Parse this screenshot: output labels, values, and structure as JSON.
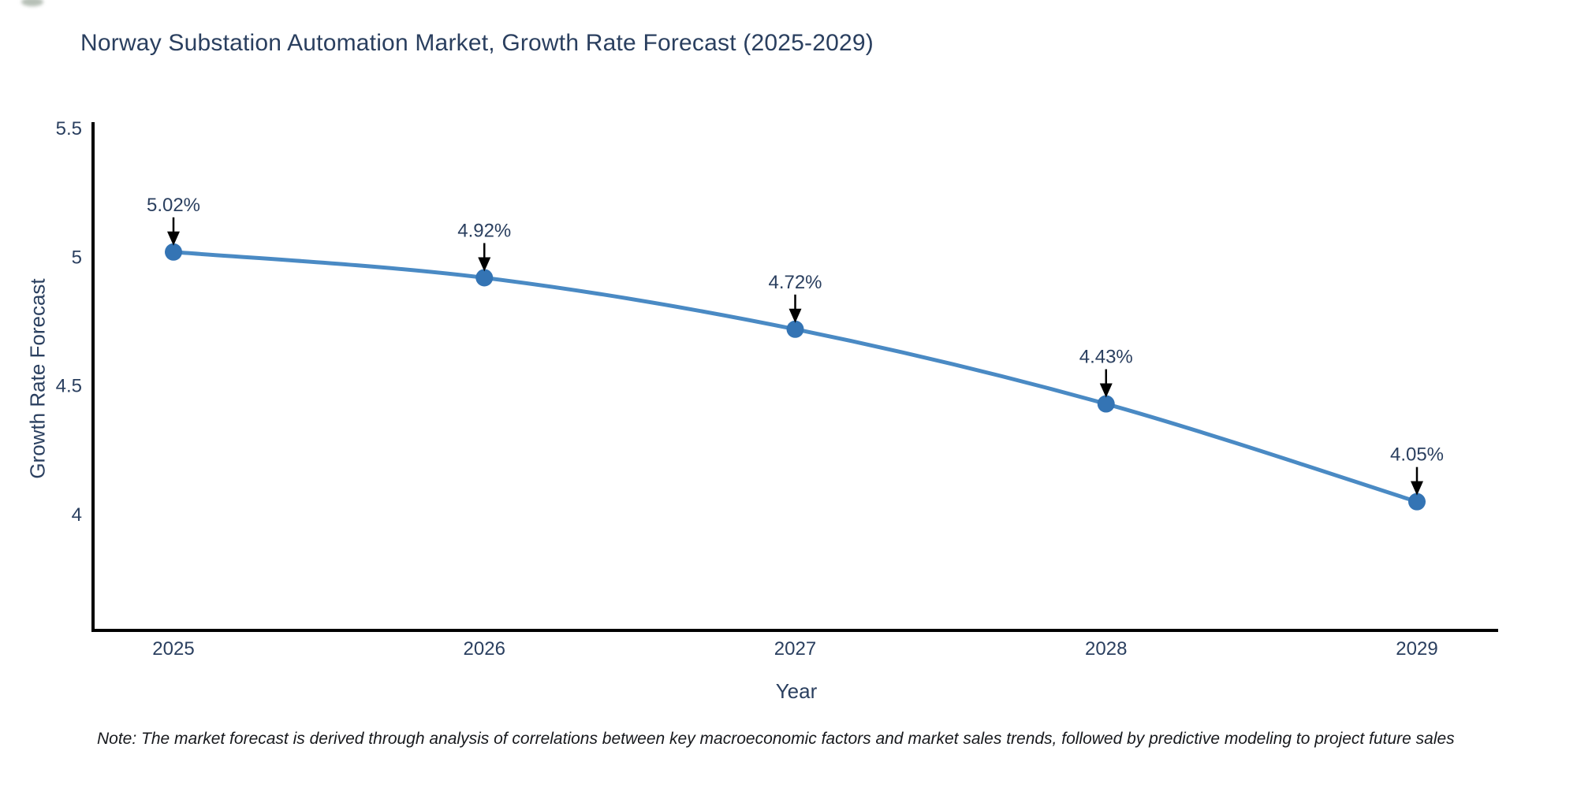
{
  "note": "Note: The market forecast is derived through analysis of correlations between key macroeconomic factors and market sales trends, followed by predictive modeling to project future sales",
  "chart_data": {
    "type": "line",
    "title": "Norway Substation Automation Market, Growth Rate Forecast (2025-2029)",
    "xlabel": "Year",
    "ylabel": "Growth Rate Forecast",
    "x": [
      2025,
      2026,
      2027,
      2028,
      2029
    ],
    "values": [
      5.02,
      4.92,
      4.72,
      4.43,
      4.05
    ],
    "point_labels": [
      "5.02%",
      "4.92%",
      "4.72%",
      "4.43%",
      "4.05%"
    ],
    "yticks": [
      5.5,
      5,
      4.5,
      4
    ],
    "ylim": [
      3.55,
      5.52
    ],
    "grid": false,
    "legend": "none",
    "curve": "spline",
    "colors": {
      "line": "#4a8ac4",
      "marker": "#3474b4",
      "axis": "#000000",
      "text": "#2a3f5f",
      "annotation_arrow": "#000000"
    }
  }
}
